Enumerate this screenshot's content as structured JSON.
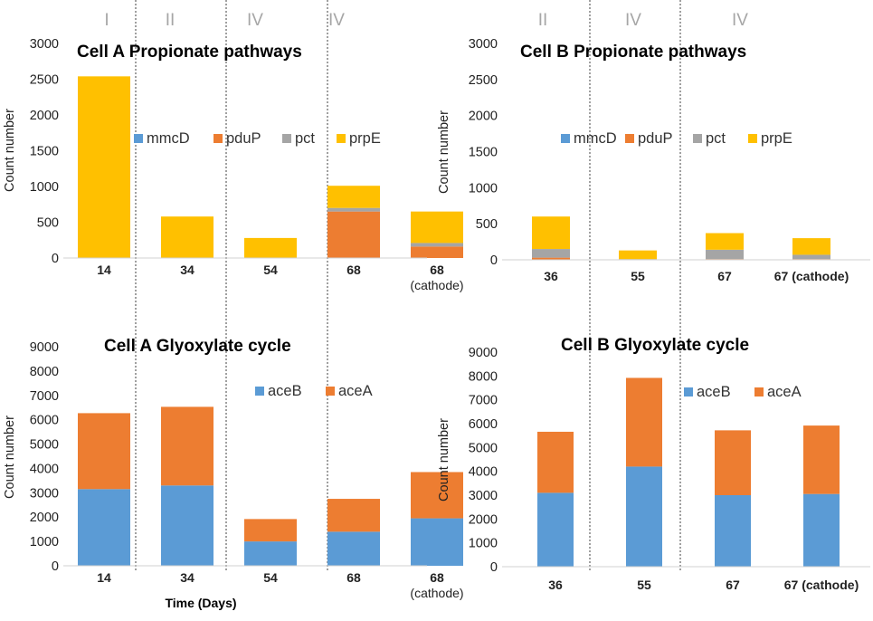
{
  "xlabel_bottom": "Time (Days)",
  "colors": {
    "mmcD": "#5b9bd5",
    "pduP": "#ed7d31",
    "pct": "#a5a5a5",
    "prpE": "#ffc000",
    "aceB": "#5b9bd5",
    "aceA": "#ed7d31",
    "roman": "#a6a6a6",
    "divider": "#404040"
  },
  "chart_data": [
    {
      "id": "cellA-prop",
      "type": "bar",
      "stacked": true,
      "title": "Cell A Propionate pathways",
      "ylabel": "Count number",
      "xlabel": "",
      "ylim": [
        0,
        3000
      ],
      "yticks": [
        0,
        500,
        1000,
        1500,
        2000,
        2500,
        3000
      ],
      "categories": [
        "14",
        "34",
        "54",
        "68",
        "68\n(cathode)"
      ],
      "series": [
        {
          "name": "mmcD",
          "color": "#5b9bd5",
          "values": [
            0,
            0,
            0,
            0,
            0
          ]
        },
        {
          "name": "pduP",
          "color": "#ed7d31",
          "values": [
            0,
            0,
            0,
            650,
            160
          ]
        },
        {
          "name": "pct",
          "color": "#a5a5a5",
          "values": [
            0,
            0,
            0,
            50,
            50
          ]
        },
        {
          "name": "prpE",
          "color": "#ffc000",
          "values": [
            2540,
            580,
            280,
            310,
            440
          ]
        }
      ],
      "legend_position": "center",
      "phases": [
        "I",
        "II",
        "IV",
        "IV"
      ]
    },
    {
      "id": "cellB-prop",
      "type": "bar",
      "stacked": true,
      "title": "Cell B Propionate pathways",
      "ylabel": "Count number",
      "xlabel": "",
      "ylim": [
        0,
        3000
      ],
      "yticks": [
        0,
        500,
        1000,
        1500,
        2000,
        2500,
        3000
      ],
      "categories": [
        "36",
        "55",
        "67",
        "67 (cathode)"
      ],
      "series": [
        {
          "name": "mmcD",
          "color": "#5b9bd5",
          "values": [
            0,
            0,
            0,
            0
          ]
        },
        {
          "name": "pduP",
          "color": "#ed7d31",
          "values": [
            30,
            0,
            10,
            10
          ]
        },
        {
          "name": "pct",
          "color": "#a5a5a5",
          "values": [
            120,
            10,
            130,
            60
          ]
        },
        {
          "name": "prpE",
          "color": "#ffc000",
          "values": [
            450,
            120,
            230,
            230
          ]
        }
      ],
      "legend_position": "center",
      "phases": [
        "II",
        "IV",
        "IV"
      ]
    },
    {
      "id": "cellA-gly",
      "type": "bar",
      "stacked": true,
      "title": "Cell A Glyoxylate cycle",
      "ylabel": "Count number",
      "xlabel": "Time (Days)",
      "ylim": [
        0,
        9000
      ],
      "yticks": [
        0,
        1000,
        2000,
        3000,
        4000,
        5000,
        6000,
        7000,
        8000,
        9000
      ],
      "categories": [
        "14",
        "34",
        "54",
        "68",
        "68\n(cathode)"
      ],
      "series": [
        {
          "name": "aceB",
          "color": "#5b9bd5",
          "values": [
            3150,
            3300,
            1000,
            1400,
            1950
          ]
        },
        {
          "name": "aceA",
          "color": "#ed7d31",
          "values": [
            3120,
            3230,
            920,
            1350,
            1900
          ]
        }
      ],
      "legend_position": "top-right"
    },
    {
      "id": "cellB-gly",
      "type": "bar",
      "stacked": true,
      "title": "Cell B Glyoxylate cycle",
      "ylabel": "Count number",
      "xlabel": "",
      "ylim": [
        0,
        9000
      ],
      "yticks": [
        0,
        1000,
        2000,
        3000,
        4000,
        5000,
        6000,
        7000,
        8000,
        9000
      ],
      "categories": [
        "36",
        "55",
        "67",
        "67 (cathode)"
      ],
      "series": [
        {
          "name": "aceB",
          "color": "#5b9bd5",
          "values": [
            3100,
            4200,
            3000,
            3050
          ]
        },
        {
          "name": "aceA",
          "color": "#ed7d31",
          "values": [
            2560,
            3720,
            2720,
            2870
          ]
        }
      ],
      "legend_position": "top-right"
    }
  ]
}
